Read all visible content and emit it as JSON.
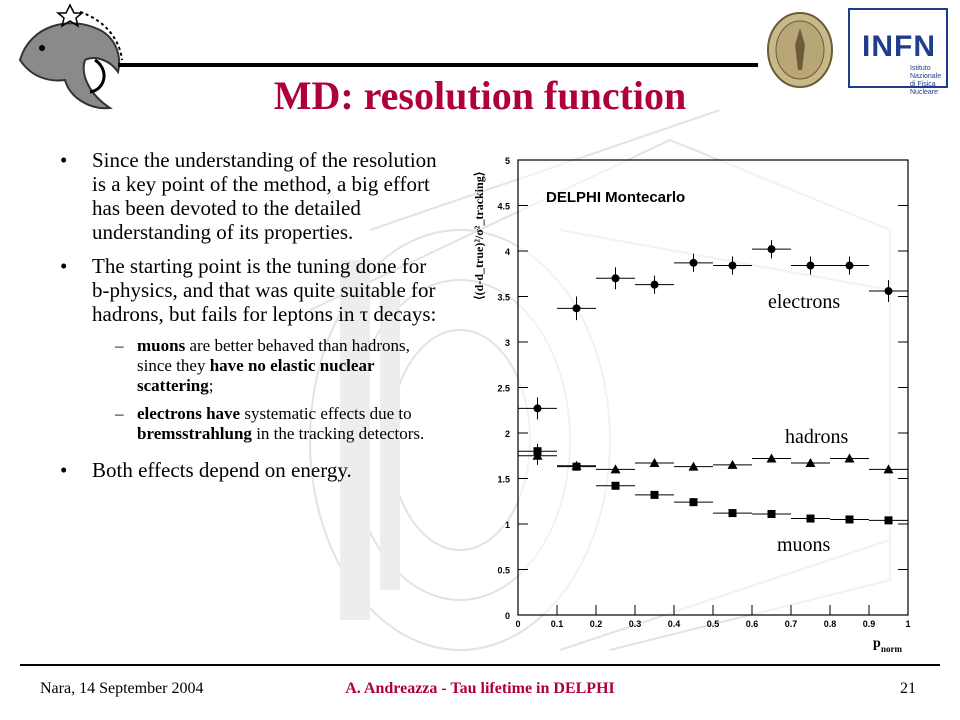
{
  "slide": {
    "title": "MD: resolution function",
    "bullets": [
      "Since the understanding of the resolution is a key point of the method, a big effort has been devoted to the detailed understanding of its properties.",
      "The starting point is the tuning done for b-physics, and that was quite suitable for hadrons, but fails for leptons in τ decays:"
    ],
    "sub_items": [
      {
        "b1": "muons",
        "t1": " are better behaved than hadrons, since they ",
        "b2": "have no elastic nuclear scattering",
        "t2": ";"
      },
      {
        "b1": "electrons have",
        "t1": " systematic effects due to ",
        "b2": "bremsstrahlung",
        "t2": " in the tracking detectors."
      }
    ],
    "last_bullet": "Both effects depend on energy.",
    "bullet_char": "•",
    "dash_char": "–"
  },
  "footer": {
    "left": "Nara, 14 September 2004",
    "center": "A. Andreazza - Tau lifetime in DELPHI",
    "right": "21"
  },
  "logos": {
    "infn": "INFN",
    "infn_sub": "Istituto Nazionale di Fisica Nucleare"
  },
  "chart_data": {
    "type": "scatter",
    "title": "DELPHI Montecarlo",
    "xlabel": "p",
    "xlabel_sub": "norm",
    "ylabel": "⟨(d-d_true)²/σ²_tracking⟩",
    "xlim": [
      0,
      1
    ],
    "ylim": [
      0,
      5
    ],
    "x_ticks": [
      "0",
      "0.1",
      "0.2",
      "0.3",
      "0.4",
      "0.5",
      "0.6",
      "0.7",
      "0.8",
      "0.9",
      "1"
    ],
    "y_ticks": [
      "0",
      "0.5",
      "1",
      "1.5",
      "2",
      "2.5",
      "3",
      "3.5",
      "4",
      "4.5",
      "5"
    ],
    "series": [
      {
        "name": "electrons",
        "marker": "circle",
        "x": [
          0.05,
          0.15,
          0.25,
          0.35,
          0.45,
          0.55,
          0.65,
          0.75,
          0.85,
          0.95
        ],
        "y": [
          2.27,
          3.37,
          3.7,
          3.63,
          3.87,
          3.84,
          4.02,
          3.84,
          3.84,
          3.56
        ],
        "yerr": [
          0.12,
          0.13,
          0.12,
          0.1,
          0.1,
          0.1,
          0.1,
          0.1,
          0.1,
          0.12
        ]
      },
      {
        "name": "hadrons",
        "marker": "triangle",
        "x": [
          0.05,
          0.15,
          0.25,
          0.35,
          0.45,
          0.55,
          0.65,
          0.75,
          0.85,
          0.95
        ],
        "y": [
          1.75,
          1.64,
          1.6,
          1.67,
          1.63,
          1.65,
          1.72,
          1.67,
          1.72,
          1.6
        ],
        "yerr": [
          0.1,
          0.04,
          0.03,
          0.03,
          0.03,
          0.03,
          0.03,
          0.03,
          0.03,
          0.03
        ]
      },
      {
        "name": "muons",
        "marker": "square",
        "x": [
          0.05,
          0.15,
          0.25,
          0.35,
          0.45,
          0.55,
          0.65,
          0.75,
          0.85,
          0.95
        ],
        "y": [
          1.8,
          1.63,
          1.42,
          1.32,
          1.24,
          1.12,
          1.11,
          1.06,
          1.05,
          1.04
        ],
        "yerr": [
          0.08,
          0.04,
          0.03,
          0.03,
          0.03,
          0.02,
          0.02,
          0.02,
          0.02,
          0.02
        ]
      }
    ],
    "series_labels": [
      "electrons",
      "hadrons",
      "muons"
    ]
  }
}
